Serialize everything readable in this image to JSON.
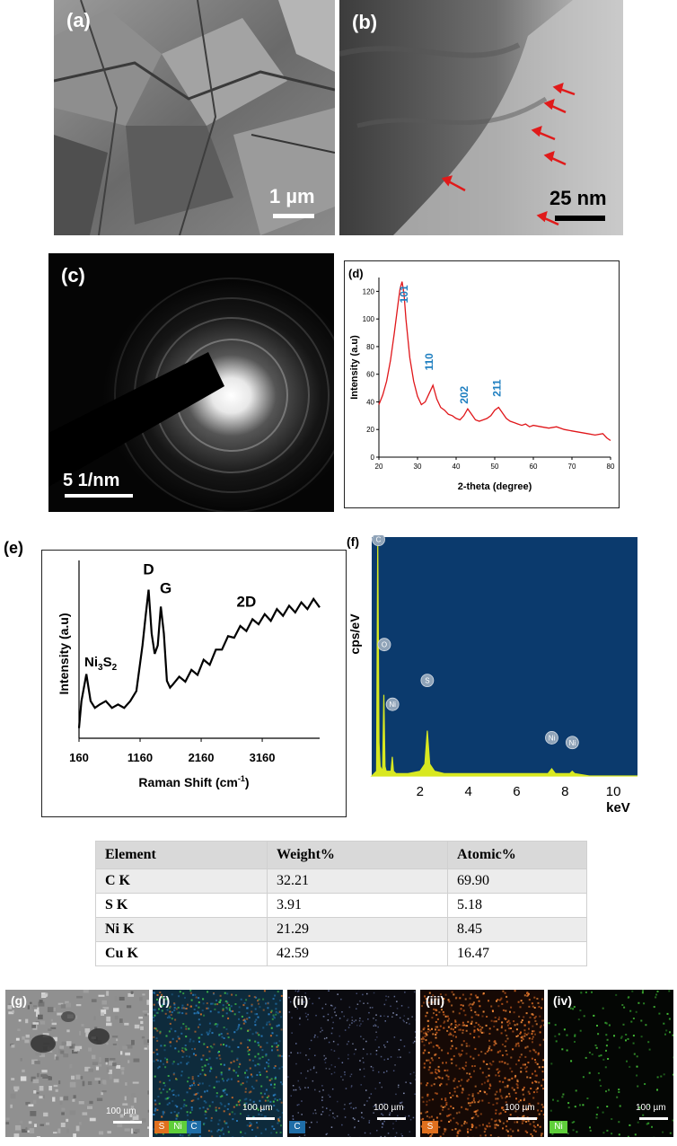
{
  "panels": {
    "a": {
      "label": "(a)",
      "scale": "1 µm"
    },
    "b": {
      "label": "(b)",
      "scale": "25 nm"
    },
    "c": {
      "label": "(c)",
      "scale": "5 1/nm"
    },
    "g": {
      "label": "(g)",
      "scale": "100 µm"
    },
    "i": {
      "label": "(i)",
      "scale": "100 µm",
      "chips": [
        "S",
        "Ni",
        "C"
      ]
    },
    "ii": {
      "label": "(ii)",
      "scale": "100 µm",
      "chips": [
        "C"
      ]
    },
    "iii": {
      "label": "(iii)",
      "scale": "100 µm",
      "chips": [
        "S"
      ]
    },
    "iv": {
      "label": "(iv)",
      "scale": "100 µm",
      "chips": [
        "Ni"
      ]
    }
  },
  "chart_data": [
    {
      "id": "d",
      "panel_label": "(d)",
      "type": "line",
      "xlabel": "2-theta (degree)",
      "ylabel": "Intensity (a.u)",
      "xlim": [
        20,
        80
      ],
      "ylim": [
        0,
        130
      ],
      "xticks": [
        20,
        30,
        40,
        50,
        60,
        70,
        80
      ],
      "yticks": [
        0,
        20,
        40,
        60,
        80,
        100,
        120
      ],
      "x": [
        20,
        21,
        22,
        23,
        24,
        25,
        25.5,
        26,
        26.5,
        27,
        28,
        29,
        30,
        31,
        32,
        33,
        34,
        35,
        36,
        37,
        38,
        39,
        40,
        41,
        42,
        43,
        44,
        45,
        46,
        47,
        48,
        49,
        50,
        51,
        52,
        53,
        54,
        55,
        56,
        57,
        58,
        59,
        60,
        62,
        64,
        66,
        68,
        70,
        72,
        74,
        76,
        78,
        79,
        80
      ],
      "y": [
        38,
        45,
        55,
        70,
        90,
        112,
        122,
        127,
        118,
        100,
        72,
        55,
        44,
        38,
        40,
        46,
        52,
        42,
        36,
        34,
        31,
        30,
        28,
        27,
        30,
        35,
        31,
        27,
        26,
        27,
        28,
        30,
        34,
        36,
        32,
        28,
        26,
        25,
        24,
        23,
        24,
        22,
        23,
        22,
        21,
        22,
        20,
        19,
        18,
        17,
        16,
        17,
        14,
        12
      ],
      "annotations": [
        {
          "text": "101",
          "x": 27.5,
          "y": 118
        },
        {
          "text": "110",
          "x": 34,
          "y": 69
        },
        {
          "text": "202",
          "x": 43,
          "y": 45
        },
        {
          "text": "211",
          "x": 51.5,
          "y": 50
        }
      ]
    },
    {
      "id": "e",
      "panel_label": "(e)",
      "type": "line",
      "xlabel": "Raman Shift (cm",
      "xlabel_sup": "-1",
      "xlabel_end": ")",
      "ylabel": "Intensity (a.u)",
      "xlim": [
        160,
        4100
      ],
      "ylim": [
        0,
        100
      ],
      "xticks": [
        160,
        1160,
        2160,
        3160
      ],
      "x": [
        160,
        200,
        280,
        350,
        420,
        500,
        600,
        700,
        800,
        900,
        1000,
        1100,
        1200,
        1250,
        1300,
        1350,
        1400,
        1450,
        1500,
        1550,
        1600,
        1650,
        1700,
        1800,
        1900,
        2000,
        2100,
        2200,
        2300,
        2400,
        2500,
        2600,
        2700,
        2800,
        2900,
        3000,
        3100,
        3200,
        3300,
        3400,
        3500,
        3600,
        3700,
        3800,
        3900,
        4000,
        4100
      ],
      "y": [
        6,
        22,
        38,
        22,
        18,
        20,
        22,
        18,
        20,
        18,
        22,
        28,
        55,
        72,
        88,
        62,
        50,
        55,
        78,
        62,
        34,
        30,
        32,
        34,
        36,
        38,
        40,
        44,
        46,
        50,
        55,
        58,
        62,
        64,
        66,
        68,
        70,
        71,
        72,
        74,
        75,
        76,
        77,
        78,
        79,
        80,
        80
      ],
      "annotations": [
        {
          "text": "D",
          "x": 1300,
          "y": 97
        },
        {
          "text": "G",
          "x": 1580,
          "y": 86
        },
        {
          "text": "2D",
          "x": 2900,
          "y": 78
        }
      ],
      "ni_label": {
        "base": "Ni",
        "sub1": "3",
        "mid": "S",
        "sub2": "2"
      }
    },
    {
      "id": "f",
      "panel_label": "(f)",
      "type": "line",
      "xlabel": "keV",
      "ylabel": "cps/eV",
      "xlim": [
        0,
        11
      ],
      "ylim": [
        0,
        100
      ],
      "xticks": [
        2,
        4,
        6,
        8,
        10
      ],
      "x": [
        0,
        0.2,
        0.25,
        0.3,
        0.35,
        0.45,
        0.5,
        0.55,
        0.6,
        0.8,
        0.85,
        0.9,
        1.0,
        1.5,
        2.0,
        2.2,
        2.3,
        2.4,
        2.6,
        3.0,
        4.0,
        5.0,
        6.0,
        7.3,
        7.45,
        7.6,
        8.2,
        8.3,
        8.4,
        9,
        10,
        11
      ],
      "y": [
        0,
        2,
        99,
        14,
        4,
        2,
        34,
        4,
        2,
        2,
        8,
        2,
        1,
        1,
        2,
        5,
        19,
        5,
        2,
        1,
        1,
        1,
        1,
        1,
        3,
        1,
        1,
        2,
        1,
        0,
        0,
        0
      ],
      "peak_labels": [
        {
          "text": "C",
          "x": 0.28,
          "y": 99
        },
        {
          "text": "O",
          "x": 0.52,
          "y": 55
        },
        {
          "text": "Ni",
          "x": 0.86,
          "y": 30
        },
        {
          "text": "S",
          "x": 2.3,
          "y": 40
        },
        {
          "text": "Ni",
          "x": 7.45,
          "y": 16
        },
        {
          "text": "Ni",
          "x": 8.3,
          "y": 14
        }
      ],
      "colors": {
        "background": "#0b3a6d",
        "trace": "#d8e820"
      }
    }
  ],
  "eds_table": {
    "headers": [
      "Element",
      "Weight%",
      "Atomic%"
    ],
    "rows": [
      [
        "C K",
        "32.21",
        "69.90"
      ],
      [
        "S K",
        "3.91",
        "5.18"
      ],
      [
        "Ni K",
        "21.29",
        "8.45"
      ],
      [
        "Cu K",
        "42.59",
        "16.47"
      ]
    ]
  }
}
